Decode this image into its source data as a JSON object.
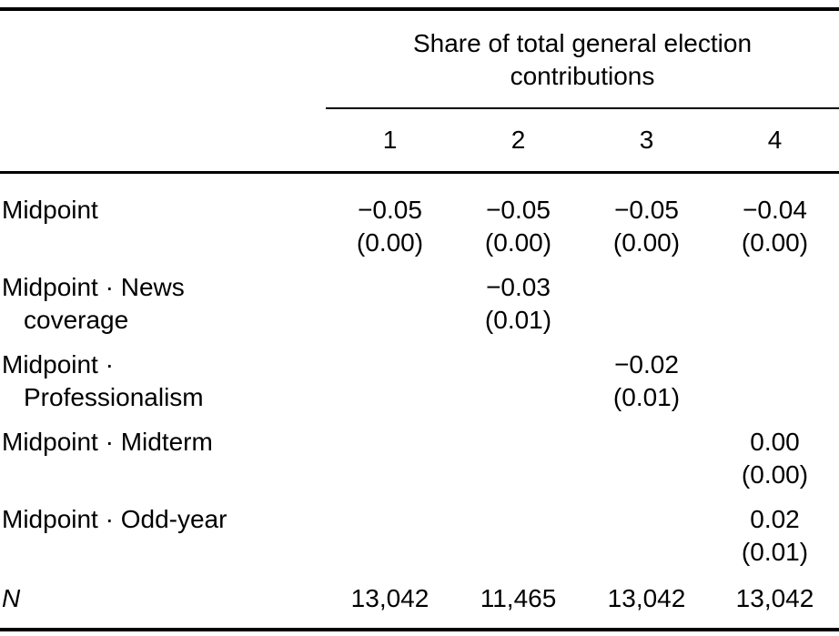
{
  "table": {
    "spanner_line1": "Share of total general election",
    "spanner_line2": "contributions",
    "columns": [
      "1",
      "2",
      "3",
      "4"
    ],
    "rows": [
      {
        "label1": "Midpoint",
        "label2": "",
        "cells": [
          {
            "est": "−0.05",
            "se": "(0.00)"
          },
          {
            "est": "−0.05",
            "se": "(0.00)"
          },
          {
            "est": "−0.05",
            "se": "(0.00)"
          },
          {
            "est": "−0.04",
            "se": "(0.00)"
          }
        ]
      },
      {
        "label1": "Midpoint · News",
        "label2": "coverage",
        "cells": [
          {
            "est": "",
            "se": ""
          },
          {
            "est": "−0.03",
            "se": "(0.01)"
          },
          {
            "est": "",
            "se": ""
          },
          {
            "est": "",
            "se": ""
          }
        ]
      },
      {
        "label1": "Midpoint ·",
        "label2": "Professionalism",
        "cells": [
          {
            "est": "",
            "se": ""
          },
          {
            "est": "",
            "se": ""
          },
          {
            "est": "−0.02",
            "se": "(0.01)"
          },
          {
            "est": "",
            "se": ""
          }
        ]
      },
      {
        "label1": "Midpoint · Midterm",
        "label2": "",
        "cells": [
          {
            "est": "",
            "se": ""
          },
          {
            "est": "",
            "se": ""
          },
          {
            "est": "",
            "se": ""
          },
          {
            "est": "0.00",
            "se": "(0.00)"
          }
        ]
      },
      {
        "label1": "Midpoint · Odd-year",
        "label2": "",
        "cells": [
          {
            "est": "",
            "se": ""
          },
          {
            "est": "",
            "se": ""
          },
          {
            "est": "",
            "se": ""
          },
          {
            "est": "0.02",
            "se": "(0.01)"
          }
        ]
      }
    ],
    "n_row": {
      "label": "N",
      "values": [
        "13,042",
        "11,465",
        "13,042",
        "13,042"
      ]
    }
  }
}
